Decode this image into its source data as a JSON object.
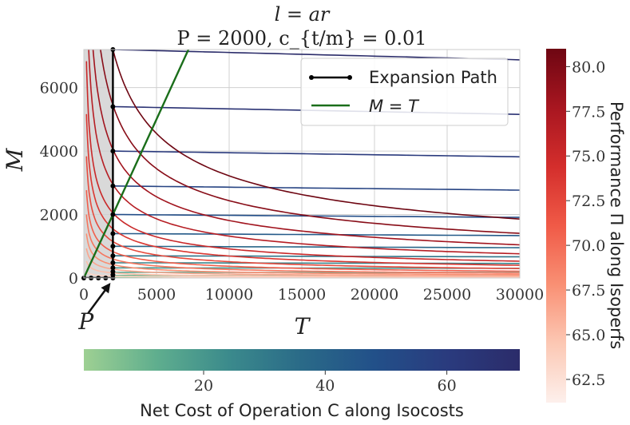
{
  "chart_data": [
    {
      "type": "line",
      "title": "l = ar",
      "subtitle": "P = 2000, c_{t/m} = 0.01",
      "xlabel": "T",
      "ylabel": "M",
      "xlim": [
        0,
        30000
      ],
      "ylim": [
        0,
        7200
      ],
      "xticks": [
        "0",
        "5000",
        "10000",
        "15000",
        "20000",
        "25000",
        "30000"
      ],
      "yticks": [
        "0",
        "2000",
        "4000",
        "6000"
      ],
      "grid": true,
      "legend_position": "top-right",
      "shaded_region": {
        "x_from": 0,
        "x_to": 2000,
        "color": "#d9d9d9"
      },
      "annotation": {
        "text": "P",
        "points_to": [
          2000,
          0
        ]
      },
      "series": [
        {
          "name": "Expansion Path",
          "color": "#000000",
          "marker": "o",
          "x": [
            0,
            500,
            1000,
            1500,
            2000,
            2000,
            2000,
            2000,
            2000,
            2000,
            2000,
            2000,
            2000,
            2000,
            2000,
            2000,
            2000
          ],
          "y": [
            0,
            0,
            0,
            0,
            0,
            100,
            200,
            320,
            480,
            700,
            1000,
            1400,
            2000,
            2900,
            4000,
            5400,
            7200
          ]
        },
        {
          "name": "M = T",
          "color": "#1a6e1a",
          "x": [
            0,
            7200
          ],
          "y": [
            0,
            7200
          ]
        }
      ],
      "isoperfs_M_at_T2000": [
        60,
        160,
        280,
        420,
        600,
        830,
        1150,
        1550,
        2050,
        2950,
        4050,
        5450,
        7200
      ],
      "isocosts_M_at_T2000": [
        15,
        80,
        180,
        320,
        480,
        700,
        1000,
        1400,
        2000,
        2900,
        4000,
        5400,
        7200
      ]
    },
    {
      "type": "colorbar",
      "orientation": "horizontal",
      "label": "Net Cost of Operation C along Isocosts",
      "range": [
        0.3,
        72
      ],
      "ticks": [
        "20",
        "40",
        "60"
      ],
      "colormap": [
        "#9ed093",
        "#5fae8e",
        "#3b8a8c",
        "#2a6a88",
        "#225089",
        "#2a3b7e",
        "#2b2c6a"
      ]
    },
    {
      "type": "colorbar",
      "orientation": "vertical",
      "label": "Performance Π along Isoperfs",
      "range": [
        61.2,
        81
      ],
      "ticks": [
        "62.5",
        "65.0",
        "67.5",
        "70.0",
        "72.5",
        "75.0",
        "77.5",
        "80.0"
      ],
      "colormap": [
        "#fdf0ec",
        "#fcc8b4",
        "#f99074",
        "#f05a47",
        "#d42e2c",
        "#a81620",
        "#6e0612"
      ]
    }
  ]
}
